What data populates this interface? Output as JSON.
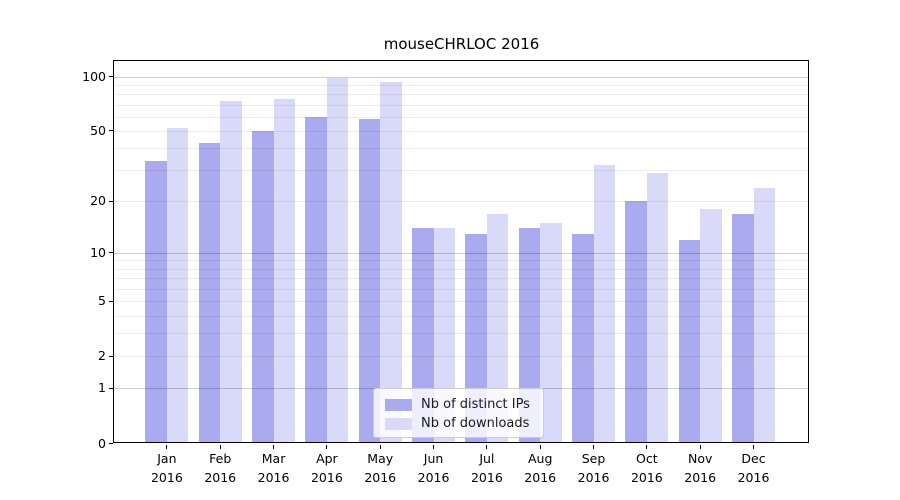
{
  "chart_data": {
    "type": "bar",
    "title": "mouseCHRLOC 2016",
    "categories": [
      "Jan",
      "Feb",
      "Mar",
      "Apr",
      "May",
      "Jun",
      "Jul",
      "Aug",
      "Sep",
      "Oct",
      "Nov",
      "Dec"
    ],
    "x_tick_second_line": "2016",
    "series": [
      {
        "name": "Nb of distinct IPs",
        "color": "#aaaaf0",
        "values": [
          34,
          43,
          50,
          60,
          58,
          14,
          13,
          14,
          13,
          20,
          12,
          17
        ]
      },
      {
        "name": "Nb of downloads",
        "color": "#d9d9fa",
        "values": [
          52,
          73,
          75,
          98,
          93,
          14,
          17,
          15,
          32,
          29,
          18,
          24
        ]
      }
    ],
    "y_scale": "log1p",
    "ylim": [
      0,
      123
    ],
    "y_ticks": [
      0,
      1,
      2,
      5,
      10,
      20,
      50,
      100
    ],
    "y_gridlines_major": [
      1,
      10,
      100
    ],
    "y_gridlines_minor": [
      2,
      3,
      4,
      5,
      6,
      7,
      8,
      9,
      20,
      30,
      40,
      50,
      60,
      70,
      80,
      90
    ],
    "grid": "on",
    "legend_position": "lower center",
    "colors": {
      "spine": "#000000",
      "text": "#000000",
      "major_grid": "#cccccc",
      "minor_grid": "#ebebeb",
      "legend_border": "#cccccc"
    }
  }
}
